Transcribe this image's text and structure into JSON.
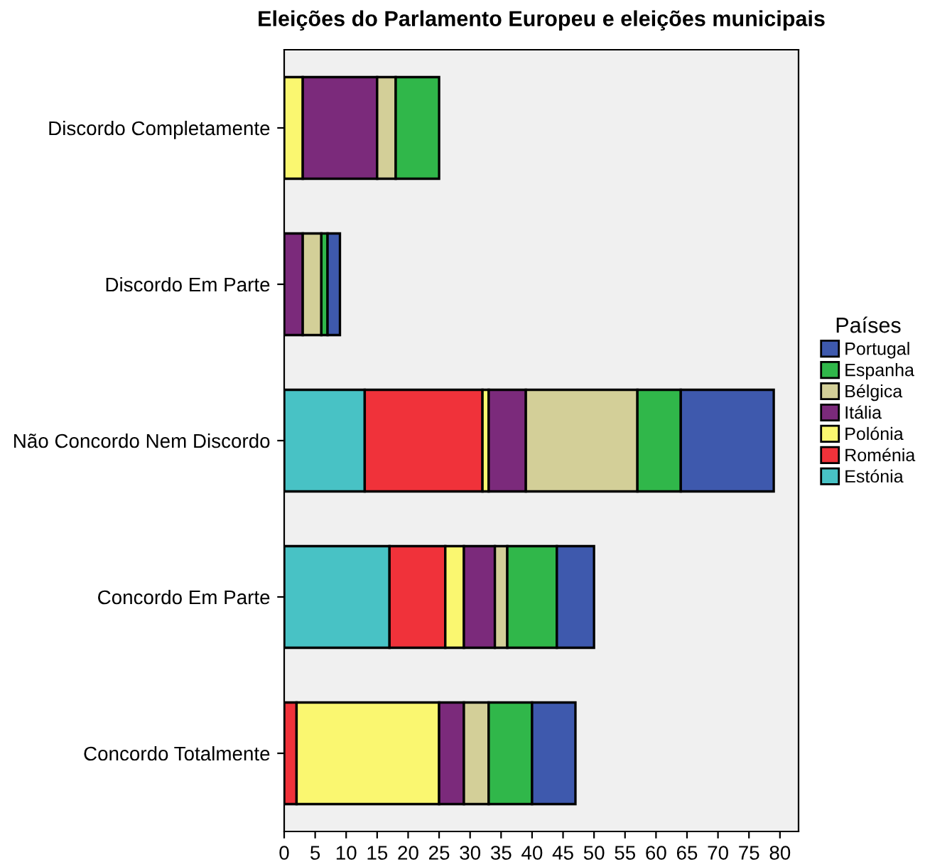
{
  "chart_data": {
    "type": "bar",
    "orientation": "horizontal",
    "stacked": true,
    "title": "Eleições do Parlamento Europeu e eleições municipais",
    "legend_title": "Países",
    "legend": "right",
    "grid": false,
    "categories": [
      "Discordo Completamente",
      "Discordo Em Parte",
      "Não Concordo Nem Discordo",
      "Concordo Em Parte",
      "Concordo Totalmente"
    ],
    "xlim": [
      0,
      83
    ],
    "xticks": [
      0,
      5,
      10,
      15,
      20,
      25,
      30,
      35,
      40,
      45,
      50,
      55,
      60,
      65,
      70,
      75,
      80
    ],
    "series": [
      {
        "name": "Estónia",
        "color": "#48c2c5",
        "values": [
          0,
          0,
          13,
          17,
          0
        ]
      },
      {
        "name": "Roménia",
        "color": "#f0323a",
        "values": [
          0,
          0,
          19,
          9,
          2
        ]
      },
      {
        "name": "Polónia",
        "color": "#faf770",
        "values": [
          3,
          0,
          1,
          3,
          23
        ]
      },
      {
        "name": "Itália",
        "color": "#7b2a7b",
        "values": [
          12,
          3,
          6,
          5,
          4
        ]
      },
      {
        "name": "Bélgica",
        "color": "#d3cf98",
        "values": [
          3,
          3,
          18,
          2,
          4
        ]
      },
      {
        "name": "Espanha",
        "color": "#30b74a",
        "values": [
          7,
          1,
          7,
          8,
          7
        ]
      },
      {
        "name": "Portugal",
        "color": "#3e59ad",
        "values": [
          0,
          2,
          15,
          6,
          7
        ]
      }
    ]
  }
}
